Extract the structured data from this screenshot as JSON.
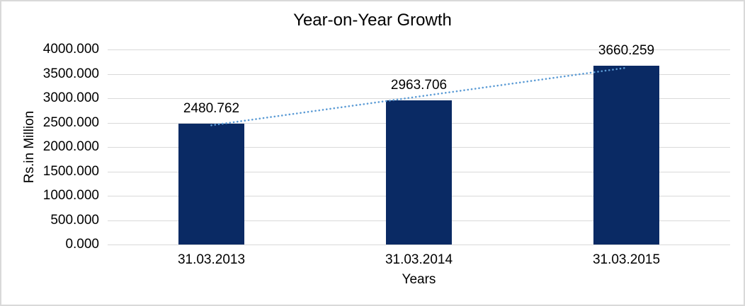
{
  "chart_data": {
    "type": "bar",
    "title": "Year-on-Year Growth",
    "xlabel": "Years",
    "ylabel": "Rs.in Million",
    "categories": [
      "31.03.2013",
      "31.03.2014",
      "31.03.2015"
    ],
    "values": [
      2480.762,
      2963.706,
      3660.259
    ],
    "data_labels": [
      "2480.762",
      "2963.706",
      "3660.259"
    ],
    "ylim": [
      0,
      4000
    ],
    "ytick_interval": 500,
    "ytick_labels": [
      "4000.000",
      "3500.000",
      "3000.000",
      "2500.000",
      "2000.000",
      "1500.000",
      "1000.000",
      "500.000",
      "0.000"
    ],
    "grid": true,
    "legend": "none",
    "trendline": {
      "type": "linear",
      "style": "dotted",
      "endpoint_values": [
        2445.161,
        3624.657
      ]
    },
    "colors": {
      "bar": "#0A2A64",
      "trendline": "#5B9BD5",
      "gridline": "#D9D9D9",
      "text": "#000000",
      "frame_border": "#D9D9D9",
      "background": "#FFFFFF"
    }
  }
}
